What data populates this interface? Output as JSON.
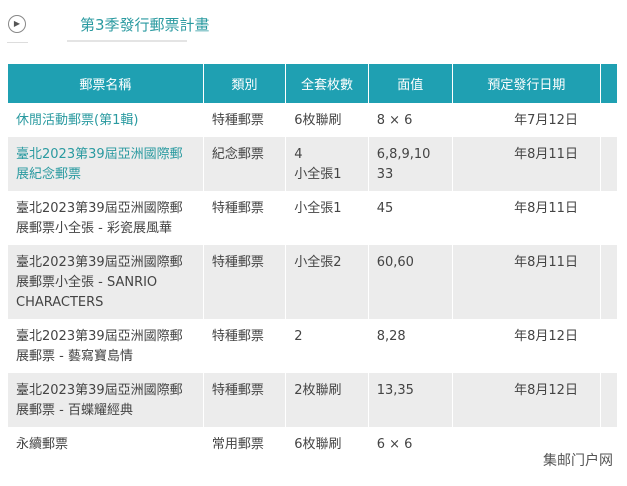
{
  "title": "第3季發行郵票計畫",
  "columns": [
    "郵票名稱",
    "類別",
    "全套枚數",
    "面值",
    "預定發行日期",
    ""
  ],
  "rows": [
    {
      "name": "休閒活動郵票(第1輯)",
      "type": "特種郵票",
      "count": "6枚聯刷",
      "value": "8 × 6",
      "date": "年7月12日",
      "link": true
    },
    {
      "name": "臺北2023第39屆亞洲國際郵展紀念郵票",
      "type": "紀念郵票",
      "count": "4\n小全張1",
      "value": "6,8,9,10\n33",
      "date": "年8月11日",
      "link": true
    },
    {
      "name": "臺北2023第39屆亞洲國際郵展郵票小全張 - 彩瓷展風華",
      "type": "特種郵票",
      "count": "小全張1",
      "value": "45",
      "date": "年8月11日"
    },
    {
      "name": "臺北2023第39屆亞洲國際郵展郵票小全張 - SANRIO CHARACTERS",
      "type": "特種郵票",
      "count": "小全張2",
      "value": "60,60",
      "date": "年8月11日"
    },
    {
      "name": "臺北2023第39屆亞洲國際郵展郵票 - 藝寫寶島情",
      "type": "特種郵票",
      "count": "2",
      "value": "8,28",
      "date": "年8月12日"
    },
    {
      "name": "臺北2023第39屆亞洲國際郵展郵票 - 百蝶耀經典",
      "type": "特種郵票",
      "count": "2枚聯刷",
      "value": "13,35",
      "date": "年8月12日"
    },
    {
      "name": "永續郵票",
      "type": "常用郵票",
      "count": "6枚聯刷",
      "value": "6 × 6",
      "date": ""
    }
  ],
  "watermark": "集邮门户网",
  "colors": {
    "header": "#1fa0b2",
    "link": "#2a9aa0",
    "alt_row": "#ececec"
  }
}
